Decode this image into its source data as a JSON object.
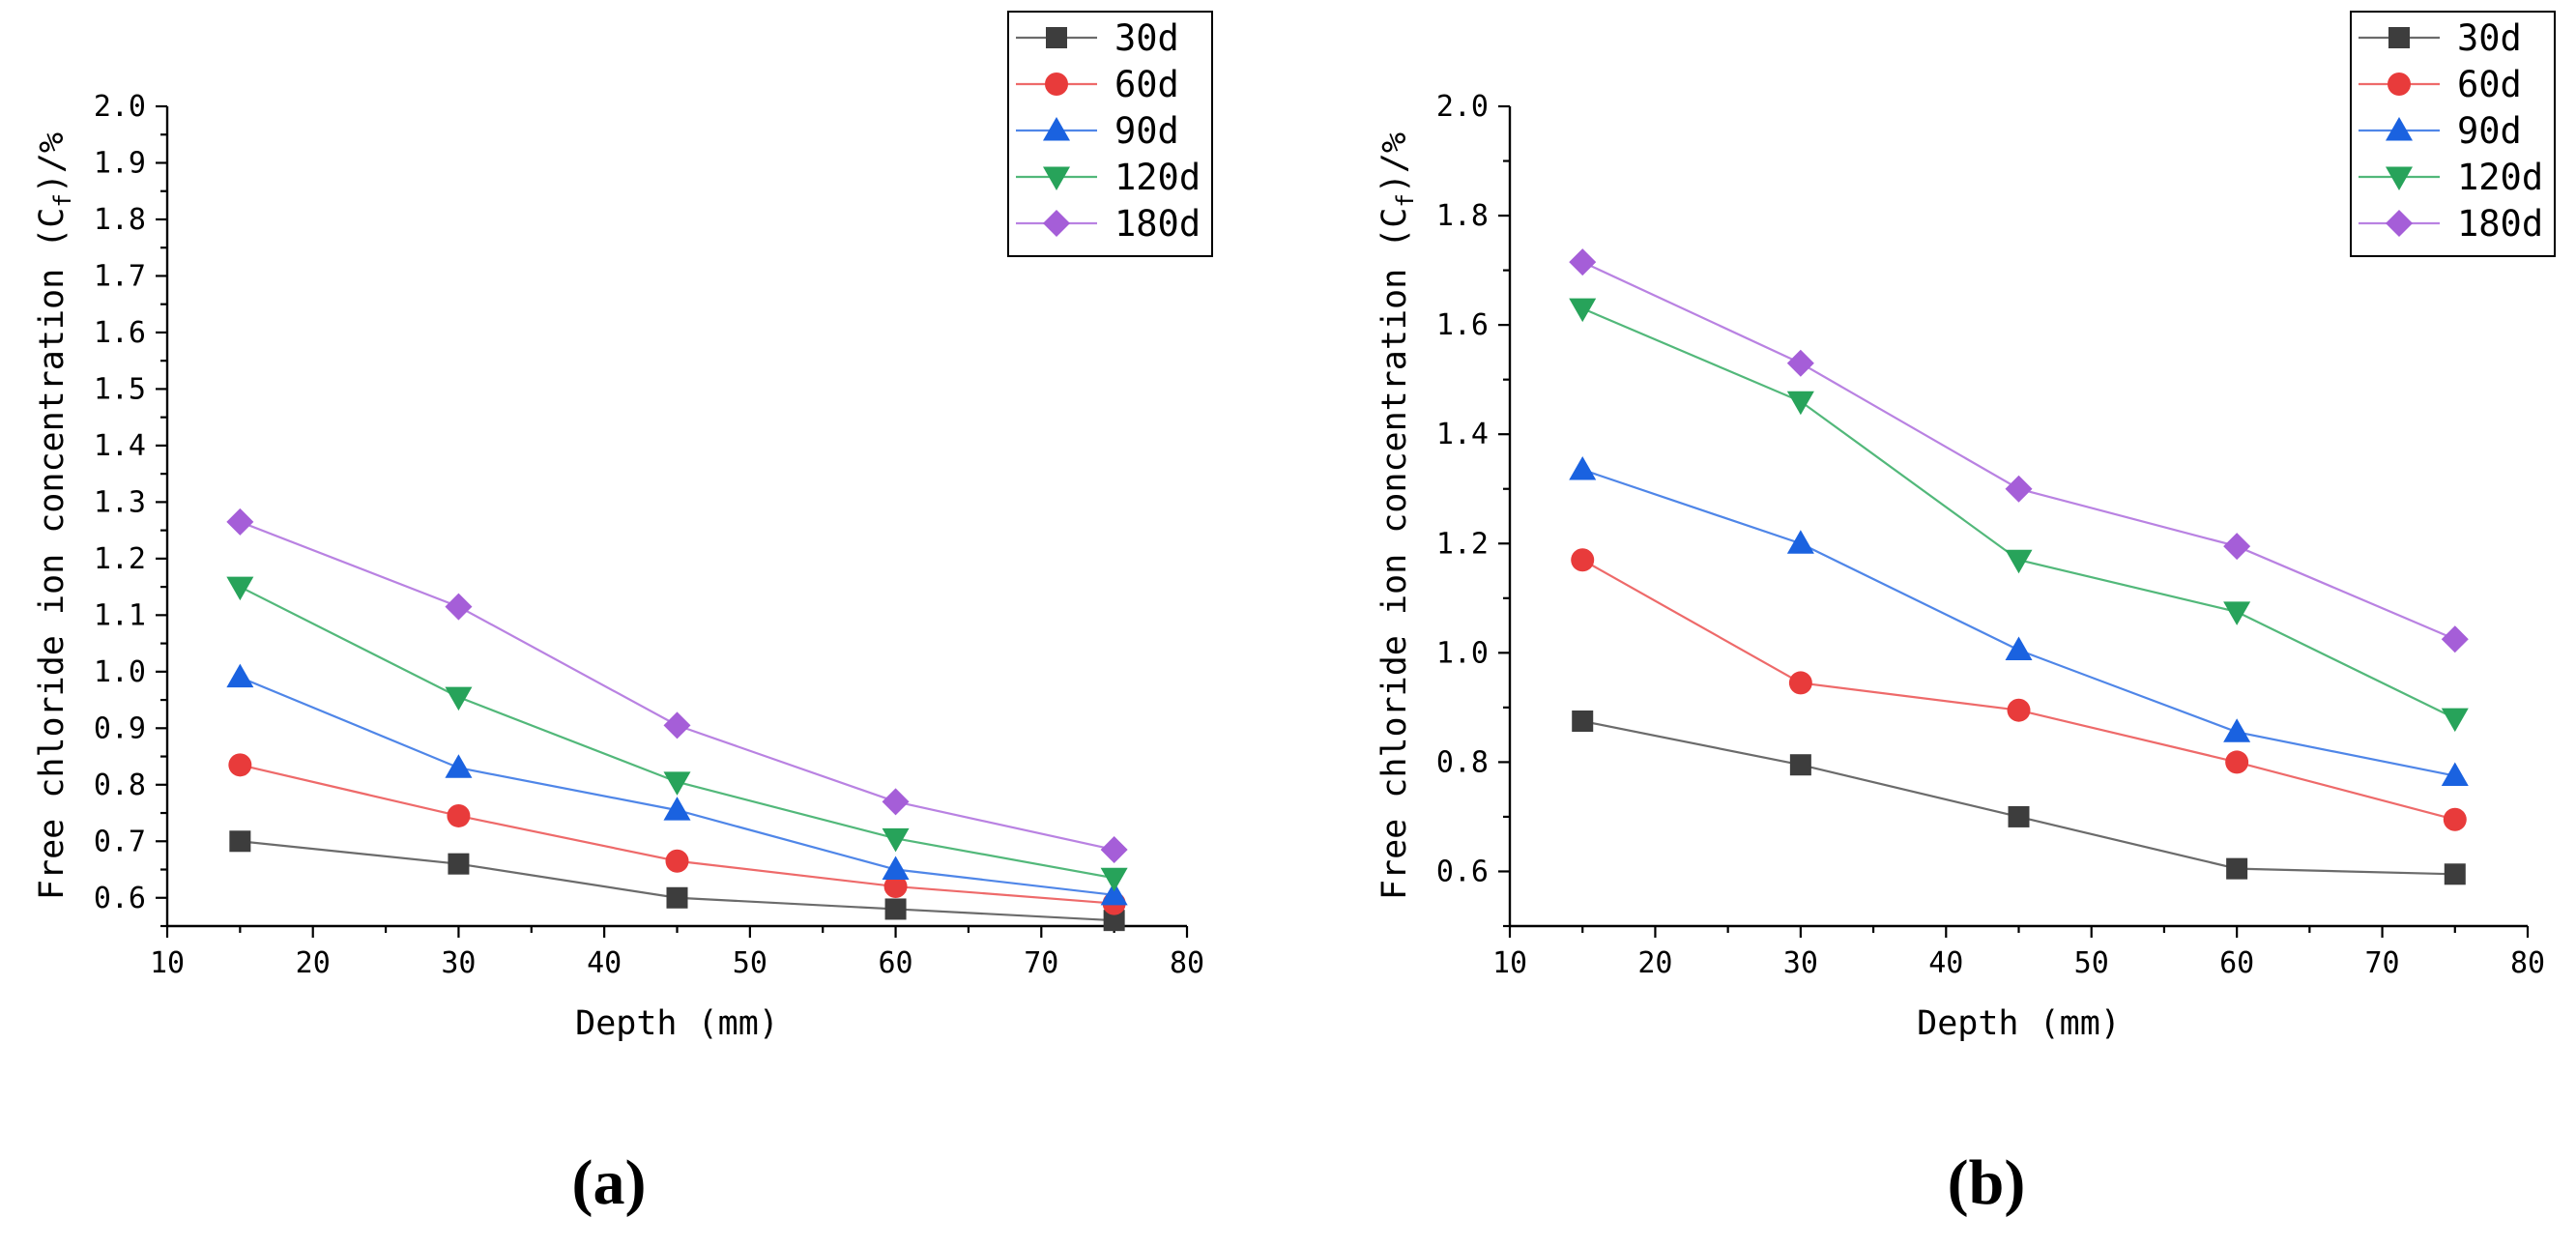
{
  "chart_data": [
    {
      "type": "line",
      "panel_label": "(a)",
      "xlabel": "Depth (mm)",
      "ylabel_parts": [
        "Free chloride ion concentration (C",
        "f",
        ")/%"
      ],
      "xlim": [
        10,
        80
      ],
      "ylim": [
        0.55,
        2.0
      ],
      "x_ticks": [
        10,
        20,
        30,
        40,
        50,
        60,
        70,
        80
      ],
      "y_ticks": [
        0.6,
        0.7,
        0.8,
        0.9,
        1.0,
        1.1,
        1.2,
        1.3,
        1.4,
        1.5,
        1.6,
        1.7,
        1.8,
        1.9,
        2.0
      ],
      "y_tick_labels": [
        "0.6",
        "0.7",
        "0.8",
        "0.9",
        "1.0",
        "1.1",
        "1.2",
        "1.3",
        "1.4",
        "1.5",
        "1.6",
        "1.7",
        "1.8",
        "1.9",
        "2.0"
      ],
      "legend_position": "top-right",
      "x": [
        15,
        30,
        45,
        60,
        75
      ],
      "series": [
        {
          "name": "30d",
          "marker": "square",
          "color": "#3d3d3d",
          "line_color": "#6b6b6b",
          "values": [
            0.7,
            0.66,
            0.6,
            0.58,
            0.56
          ]
        },
        {
          "name": "60d",
          "marker": "circle",
          "color": "#e83b3b",
          "line_color": "#ee6a6a",
          "values": [
            0.835,
            0.745,
            0.665,
            0.62,
            0.59
          ]
        },
        {
          "name": "90d",
          "marker": "triangle-up",
          "color": "#1a62e0",
          "line_color": "#4f86e8",
          "values": [
            0.99,
            0.83,
            0.755,
            0.65,
            0.605
          ]
        },
        {
          "name": "120d",
          "marker": "triangle-down",
          "color": "#27a35a",
          "line_color": "#52b87a",
          "values": [
            1.15,
            0.955,
            0.805,
            0.705,
            0.635
          ]
        },
        {
          "name": "180d",
          "marker": "diamond",
          "color": "#a55ed8",
          "line_color": "#b982e2",
          "values": [
            1.265,
            1.115,
            0.905,
            0.77,
            0.685
          ]
        }
      ]
    },
    {
      "type": "line",
      "panel_label": "(b)",
      "xlabel": "Depth (mm)",
      "ylabel_parts": [
        "Free chloride ion concentration (C",
        "f",
        ")/%"
      ],
      "xlim": [
        10,
        80
      ],
      "ylim": [
        0.5,
        2.0
      ],
      "x_ticks": [
        10,
        20,
        30,
        40,
        50,
        60,
        70,
        80
      ],
      "y_ticks": [
        0.6,
        0.8,
        1.0,
        1.2,
        1.4,
        1.6,
        1.8,
        2.0
      ],
      "y_tick_labels": [
        "0.6",
        "0.8",
        "1.0",
        "1.2",
        "1.4",
        "1.6",
        "1.8",
        "2.0"
      ],
      "legend_position": "top-right",
      "x": [
        15,
        30,
        45,
        60,
        75
      ],
      "series": [
        {
          "name": "30d",
          "marker": "square",
          "color": "#3d3d3d",
          "line_color": "#6b6b6b",
          "values": [
            0.875,
            0.795,
            0.7,
            0.605,
            0.595
          ]
        },
        {
          "name": "60d",
          "marker": "circle",
          "color": "#e83b3b",
          "line_color": "#ee6a6a",
          "values": [
            1.17,
            0.945,
            0.895,
            0.8,
            0.695
          ]
        },
        {
          "name": "90d",
          "marker": "triangle-up",
          "color": "#1a62e0",
          "line_color": "#4f86e8",
          "values": [
            1.335,
            1.2,
            1.005,
            0.855,
            0.775
          ]
        },
        {
          "name": "120d",
          "marker": "triangle-down",
          "color": "#27a35a",
          "line_color": "#52b87a",
          "values": [
            1.63,
            1.46,
            1.17,
            1.075,
            0.88
          ]
        },
        {
          "name": "180d",
          "marker": "diamond",
          "color": "#a55ed8",
          "line_color": "#b982e2",
          "values": [
            1.715,
            1.53,
            1.3,
            1.195,
            1.025
          ]
        }
      ]
    }
  ]
}
